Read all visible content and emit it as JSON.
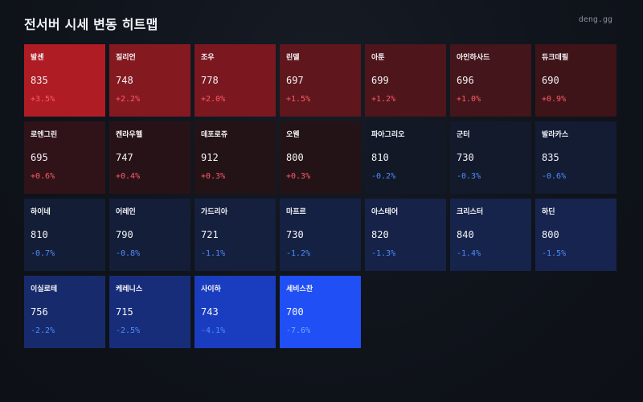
{
  "header": {
    "title": "전서버 시세 변동 히트맵",
    "brand": "deng.gg"
  },
  "colors": {
    "up_text": "#ff5a6a",
    "down_text": "#4d8cff",
    "background": "#0f131a"
  },
  "servers": [
    {
      "name": "발센",
      "price": "835",
      "change": "+3.5%",
      "direction": "up",
      "color": "#b01c24"
    },
    {
      "name": "질리언",
      "price": "748",
      "change": "+2.2%",
      "direction": "up",
      "color": "#851920"
    },
    {
      "name": "조우",
      "price": "778",
      "change": "+2.0%",
      "direction": "up",
      "color": "#7b181f"
    },
    {
      "name": "린델",
      "price": "697",
      "change": "+1.5%",
      "direction": "up",
      "color": "#5f161c"
    },
    {
      "name": "아툰",
      "price": "699",
      "change": "+1.2%",
      "direction": "up",
      "color": "#4e151b"
    },
    {
      "name": "아인하사드",
      "price": "696",
      "change": "+1.0%",
      "direction": "up",
      "color": "#44151a"
    },
    {
      "name": "듀크데필",
      "price": "690",
      "change": "+0.9%",
      "direction": "up",
      "color": "#3f1419"
    },
    {
      "name": "로엔그린",
      "price": "695",
      "change": "+0.6%",
      "direction": "up",
      "color": "#301318"
    },
    {
      "name": "켄라우헬",
      "price": "747",
      "change": "+0.4%",
      "direction": "up",
      "color": "#271317"
    },
    {
      "name": "데포로쥬",
      "price": "912",
      "change": "+0.3%",
      "direction": "up",
      "color": "#241316"
    },
    {
      "name": "오웬",
      "price": "800",
      "change": "+0.3%",
      "direction": "up",
      "color": "#241316"
    },
    {
      "name": "파아그리오",
      "price": "810",
      "change": "-0.2%",
      "direction": "down",
      "color": "#121826"
    },
    {
      "name": "군터",
      "price": "730",
      "change": "-0.3%",
      "direction": "down",
      "color": "#131a2c"
    },
    {
      "name": "발라카스",
      "price": "835",
      "change": "-0.6%",
      "direction": "down",
      "color": "#141c33"
    },
    {
      "name": "하이네",
      "price": "810",
      "change": "-0.7%",
      "direction": "down",
      "color": "#141d36"
    },
    {
      "name": "어레인",
      "price": "790",
      "change": "-0.8%",
      "direction": "down",
      "color": "#141e39"
    },
    {
      "name": "가드리아",
      "price": "721",
      "change": "-1.1%",
      "direction": "down",
      "color": "#15203f"
    },
    {
      "name": "마프르",
      "price": "730",
      "change": "-1.2%",
      "direction": "down",
      "color": "#152143"
    },
    {
      "name": "아스테어",
      "price": "820",
      "change": "-1.3%",
      "direction": "down",
      "color": "#162247"
    },
    {
      "name": "크리스터",
      "price": "840",
      "change": "-1.4%",
      "direction": "down",
      "color": "#16234b"
    },
    {
      "name": "하딘",
      "price": "800",
      "change": "-1.5%",
      "direction": "down",
      "color": "#17244f"
    },
    {
      "name": "이실로테",
      "price": "756",
      "change": "-2.2%",
      "direction": "down",
      "color": "#172a6c"
    },
    {
      "name": "케레니스",
      "price": "715",
      "change": "-2.5%",
      "direction": "down",
      "color": "#182d7a"
    },
    {
      "name": "사이하",
      "price": "743",
      "change": "-4.1%",
      "direction": "down",
      "color": "#1a3dbf"
    },
    {
      "name": "세비스찬",
      "price": "700",
      "change": "-7.6%",
      "direction": "down-strong",
      "color": "#1f4ff5"
    }
  ]
}
